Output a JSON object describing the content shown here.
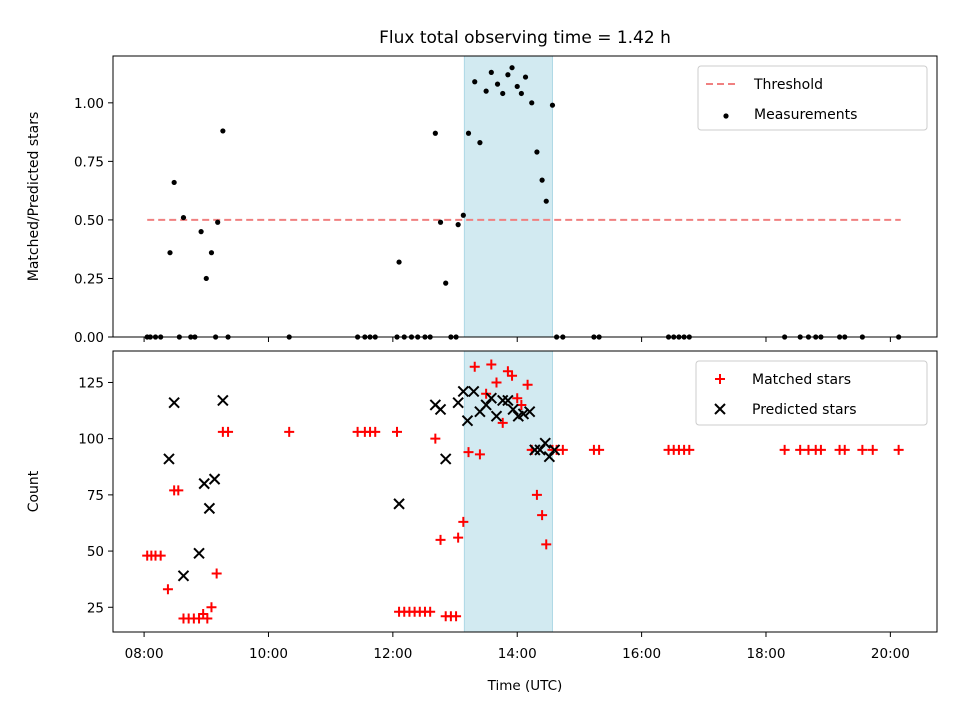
{
  "chart_data": [
    {
      "type": "scatter",
      "title": "Flux total observing time = 1.42 h",
      "ylabel": "Matched/Predicted stars",
      "xlim": [
        "07:30",
        "20:45"
      ],
      "ylim": [
        0,
        1.2
      ],
      "x_ticks": [],
      "y_ticks": [
        "0.00",
        "0.25",
        "0.50",
        "0.75",
        "1.00"
      ],
      "highlight_span": {
        "from": "13:09",
        "to": "14:34",
        "color": "#add8e6"
      },
      "legend": {
        "placement": "upper-right",
        "entries": [
          "Threshold",
          "Measurements"
        ]
      },
      "threshold": {
        "name": "Threshold",
        "value": 0.5,
        "from": "08:03",
        "to": "20:10",
        "color": "#f08080",
        "style": "dashed"
      },
      "series": [
        {
          "name": "Measurements",
          "marker": "dot",
          "color": "#000000",
          "points": [
            {
              "x": "08:03",
              "y": 0.0
            },
            {
              "x": "08:06",
              "y": 0.0
            },
            {
              "x": "08:11",
              "y": 0.0
            },
            {
              "x": "08:16",
              "y": 0.0
            },
            {
              "x": "08:25",
              "y": 0.36
            },
            {
              "x": "08:29",
              "y": 0.66
            },
            {
              "x": "08:34",
              "y": 0.0
            },
            {
              "x": "08:38",
              "y": 0.51
            },
            {
              "x": "08:45",
              "y": 0.0
            },
            {
              "x": "08:49",
              "y": 0.0
            },
            {
              "x": "08:55",
              "y": 0.45
            },
            {
              "x": "09:00",
              "y": 0.25
            },
            {
              "x": "09:05",
              "y": 0.36
            },
            {
              "x": "09:11",
              "y": 0.49
            },
            {
              "x": "09:09",
              "y": 0.0
            },
            {
              "x": "09:16",
              "y": 0.88
            },
            {
              "x": "09:21",
              "y": 0.0
            },
            {
              "x": "10:20",
              "y": 0.0
            },
            {
              "x": "11:26",
              "y": 0.0
            },
            {
              "x": "11:33",
              "y": 0.0
            },
            {
              "x": "11:38",
              "y": 0.0
            },
            {
              "x": "11:43",
              "y": 0.0
            },
            {
              "x": "12:04",
              "y": 0.0
            },
            {
              "x": "12:06",
              "y": 0.32
            },
            {
              "x": "12:11",
              "y": 0.0
            },
            {
              "x": "12:18",
              "y": 0.0
            },
            {
              "x": "12:24",
              "y": 0.0
            },
            {
              "x": "12:31",
              "y": 0.0
            },
            {
              "x": "12:36",
              "y": 0.0
            },
            {
              "x": "12:41",
              "y": 0.87
            },
            {
              "x": "12:46",
              "y": 0.49
            },
            {
              "x": "12:51",
              "y": 0.23
            },
            {
              "x": "12:56",
              "y": 0.0
            },
            {
              "x": "13:01",
              "y": 0.0
            },
            {
              "x": "13:03",
              "y": 0.48
            },
            {
              "x": "13:08",
              "y": 0.52
            },
            {
              "x": "13:13",
              "y": 0.87
            },
            {
              "x": "13:19",
              "y": 1.09
            },
            {
              "x": "13:24",
              "y": 0.83
            },
            {
              "x": "13:30",
              "y": 1.05
            },
            {
              "x": "13:35",
              "y": 1.13
            },
            {
              "x": "13:41",
              "y": 1.08
            },
            {
              "x": "13:46",
              "y": 1.04
            },
            {
              "x": "13:51",
              "y": 1.12
            },
            {
              "x": "13:55",
              "y": 1.15
            },
            {
              "x": "14:00",
              "y": 1.07
            },
            {
              "x": "14:04",
              "y": 1.04
            },
            {
              "x": "14:08",
              "y": 1.11
            },
            {
              "x": "14:14",
              "y": 1.0
            },
            {
              "x": "14:19",
              "y": 0.79
            },
            {
              "x": "14:24",
              "y": 0.67
            },
            {
              "x": "14:28",
              "y": 0.58
            },
            {
              "x": "14:34",
              "y": 0.99
            },
            {
              "x": "14:38",
              "y": 0.0
            },
            {
              "x": "14:44",
              "y": 0.0
            },
            {
              "x": "15:14",
              "y": 0.0
            },
            {
              "x": "15:19",
              "y": 0.0
            },
            {
              "x": "16:26",
              "y": 0.0
            },
            {
              "x": "16:31",
              "y": 0.0
            },
            {
              "x": "16:36",
              "y": 0.0
            },
            {
              "x": "16:41",
              "y": 0.0
            },
            {
              "x": "16:46",
              "y": 0.0
            },
            {
              "x": "18:18",
              "y": 0.0
            },
            {
              "x": "18:33",
              "y": 0.0
            },
            {
              "x": "18:41",
              "y": 0.0
            },
            {
              "x": "18:48",
              "y": 0.0
            },
            {
              "x": "18:53",
              "y": 0.0
            },
            {
              "x": "19:11",
              "y": 0.0
            },
            {
              "x": "19:16",
              "y": 0.0
            },
            {
              "x": "19:33",
              "y": 0.0
            },
            {
              "x": "20:08",
              "y": 0.0
            }
          ]
        }
      ]
    },
    {
      "type": "scatter",
      "xlabel": "Time (UTC)",
      "ylabel": "Count",
      "xlim": [
        "07:30",
        "20:45"
      ],
      "ylim": [
        14,
        139
      ],
      "x_ticks": [
        "08:00",
        "10:00",
        "12:00",
        "14:00",
        "16:00",
        "18:00",
        "20:00"
      ],
      "y_ticks": [
        "25",
        "50",
        "75",
        "100",
        "125"
      ],
      "highlight_span": {
        "from": "13:09",
        "to": "14:34",
        "color": "#add8e6"
      },
      "legend": {
        "placement": "upper-right",
        "entries": [
          "Matched stars",
          "Predicted stars"
        ]
      },
      "series": [
        {
          "name": "Matched stars",
          "marker": "plus",
          "color": "#ff0000",
          "points": [
            {
              "x": "08:03",
              "y": 48
            },
            {
              "x": "08:07",
              "y": 48
            },
            {
              "x": "08:11",
              "y": 48
            },
            {
              "x": "08:16",
              "y": 48
            },
            {
              "x": "08:23",
              "y": 33
            },
            {
              "x": "08:29",
              "y": 77
            },
            {
              "x": "08:33",
              "y": 77
            },
            {
              "x": "08:38",
              "y": 20
            },
            {
              "x": "08:43",
              "y": 20
            },
            {
              "x": "08:48",
              "y": 20
            },
            {
              "x": "08:53",
              "y": 20
            },
            {
              "x": "08:57",
              "y": 22
            },
            {
              "x": "09:01",
              "y": 20
            },
            {
              "x": "09:05",
              "y": 25
            },
            {
              "x": "09:10",
              "y": 40
            },
            {
              "x": "09:16",
              "y": 103
            },
            {
              "x": "09:21",
              "y": 103
            },
            {
              "x": "10:20",
              "y": 103
            },
            {
              "x": "11:26",
              "y": 103
            },
            {
              "x": "11:33",
              "y": 103
            },
            {
              "x": "11:38",
              "y": 103
            },
            {
              "x": "11:43",
              "y": 103
            },
            {
              "x": "12:04",
              "y": 103
            },
            {
              "x": "12:06",
              "y": 23
            },
            {
              "x": "12:11",
              "y": 23
            },
            {
              "x": "12:16",
              "y": 23
            },
            {
              "x": "12:21",
              "y": 23
            },
            {
              "x": "12:26",
              "y": 23
            },
            {
              "x": "12:31",
              "y": 23
            },
            {
              "x": "12:36",
              "y": 23
            },
            {
              "x": "12:41",
              "y": 100
            },
            {
              "x": "12:46",
              "y": 55
            },
            {
              "x": "12:51",
              "y": 21
            },
            {
              "x": "12:56",
              "y": 21
            },
            {
              "x": "13:01",
              "y": 21
            },
            {
              "x": "13:03",
              "y": 56
            },
            {
              "x": "13:08",
              "y": 63
            },
            {
              "x": "13:13",
              "y": 94
            },
            {
              "x": "13:19",
              "y": 132
            },
            {
              "x": "13:24",
              "y": 93
            },
            {
              "x": "13:30",
              "y": 120
            },
            {
              "x": "13:35",
              "y": 133
            },
            {
              "x": "13:40",
              "y": 125
            },
            {
              "x": "13:46",
              "y": 107
            },
            {
              "x": "13:51",
              "y": 130
            },
            {
              "x": "13:55",
              "y": 128
            },
            {
              "x": "14:00",
              "y": 118
            },
            {
              "x": "14:04",
              "y": 115
            },
            {
              "x": "14:10",
              "y": 124
            },
            {
              "x": "14:14",
              "y": 95
            },
            {
              "x": "14:19",
              "y": 75
            },
            {
              "x": "14:24",
              "y": 66
            },
            {
              "x": "14:28",
              "y": 53
            },
            {
              "x": "14:34",
              "y": 95
            },
            {
              "x": "14:38",
              "y": 95
            },
            {
              "x": "14:44",
              "y": 95
            },
            {
              "x": "15:14",
              "y": 95
            },
            {
              "x": "15:19",
              "y": 95
            },
            {
              "x": "16:26",
              "y": 95
            },
            {
              "x": "16:31",
              "y": 95
            },
            {
              "x": "16:36",
              "y": 95
            },
            {
              "x": "16:41",
              "y": 95
            },
            {
              "x": "16:46",
              "y": 95
            },
            {
              "x": "18:18",
              "y": 95
            },
            {
              "x": "18:33",
              "y": 95
            },
            {
              "x": "18:41",
              "y": 95
            },
            {
              "x": "18:48",
              "y": 95
            },
            {
              "x": "18:53",
              "y": 95
            },
            {
              "x": "19:11",
              "y": 95
            },
            {
              "x": "19:16",
              "y": 95
            },
            {
              "x": "19:33",
              "y": 95
            },
            {
              "x": "19:43",
              "y": 95
            },
            {
              "x": "20:08",
              "y": 95
            }
          ]
        },
        {
          "name": "Predicted stars",
          "marker": "x",
          "color": "#000000",
          "points": [
            {
              "x": "08:24",
              "y": 91
            },
            {
              "x": "08:29",
              "y": 116
            },
            {
              "x": "08:38",
              "y": 39
            },
            {
              "x": "08:53",
              "y": 49
            },
            {
              "x": "08:58",
              "y": 80
            },
            {
              "x": "09:03",
              "y": 69
            },
            {
              "x": "09:08",
              "y": 82
            },
            {
              "x": "09:16",
              "y": 117
            },
            {
              "x": "12:06",
              "y": 71
            },
            {
              "x": "12:41",
              "y": 115
            },
            {
              "x": "12:46",
              "y": 113
            },
            {
              "x": "12:51",
              "y": 91
            },
            {
              "x": "13:03",
              "y": 116
            },
            {
              "x": "13:08",
              "y": 121
            },
            {
              "x": "13:12",
              "y": 108
            },
            {
              "x": "13:18",
              "y": 121
            },
            {
              "x": "13:24",
              "y": 112
            },
            {
              "x": "13:30",
              "y": 115
            },
            {
              "x": "13:35",
              "y": 118
            },
            {
              "x": "13:40",
              "y": 110
            },
            {
              "x": "13:46",
              "y": 117
            },
            {
              "x": "13:51",
              "y": 117
            },
            {
              "x": "13:56",
              "y": 113
            },
            {
              "x": "14:01",
              "y": 110
            },
            {
              "x": "14:06",
              "y": 111
            },
            {
              "x": "14:12",
              "y": 112
            },
            {
              "x": "14:17",
              "y": 95
            },
            {
              "x": "14:22",
              "y": 95
            },
            {
              "x": "14:27",
              "y": 98
            },
            {
              "x": "14:31",
              "y": 92
            },
            {
              "x": "14:36",
              "y": 95
            }
          ]
        }
      ]
    }
  ]
}
